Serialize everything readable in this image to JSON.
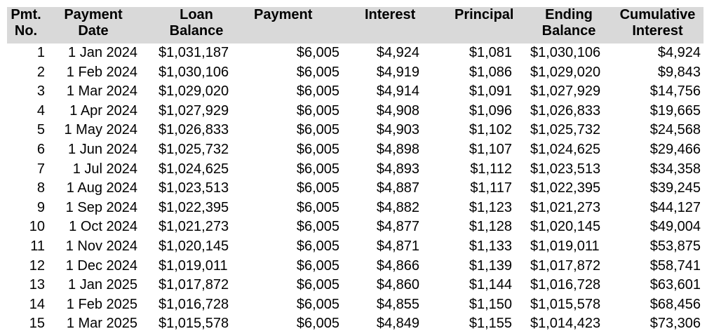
{
  "headers": {
    "pmt_no": [
      "Pmt.",
      "No."
    ],
    "payment_date": [
      "Payment",
      "Date"
    ],
    "loan_balance": [
      "Loan",
      "Balance"
    ],
    "payment": [
      "Payment"
    ],
    "interest": [
      "Interest"
    ],
    "principal": [
      "Principal"
    ],
    "ending_balance": [
      "Ending",
      "Balance"
    ],
    "cumulative_interest": [
      "Cumulative",
      "Interest"
    ]
  },
  "rows": [
    {
      "no": "1",
      "date": "1 Jan 2024",
      "balance": "$1,031,187",
      "payment": "$6,005",
      "interest": "$4,924",
      "principal": "$1,081",
      "ending": "$1,030,106",
      "cumulative": "$4,924"
    },
    {
      "no": "2",
      "date": "1 Feb 2024",
      "balance": "$1,030,106",
      "payment": "$6,005",
      "interest": "$4,919",
      "principal": "$1,086",
      "ending": "$1,029,020",
      "cumulative": "$9,843"
    },
    {
      "no": "3",
      "date": "1 Mar 2024",
      "balance": "$1,029,020",
      "payment": "$6,005",
      "interest": "$4,914",
      "principal": "$1,091",
      "ending": "$1,027,929",
      "cumulative": "$14,756"
    },
    {
      "no": "4",
      "date": "1 Apr 2024",
      "balance": "$1,027,929",
      "payment": "$6,005",
      "interest": "$4,908",
      "principal": "$1,096",
      "ending": "$1,026,833",
      "cumulative": "$19,665"
    },
    {
      "no": "5",
      "date": "1 May 2024",
      "balance": "$1,026,833",
      "payment": "$6,005",
      "interest": "$4,903",
      "principal": "$1,102",
      "ending": "$1,025,732",
      "cumulative": "$24,568"
    },
    {
      "no": "6",
      "date": "1 Jun 2024",
      "balance": "$1,025,732",
      "payment": "$6,005",
      "interest": "$4,898",
      "principal": "$1,107",
      "ending": "$1,024,625",
      "cumulative": "$29,466"
    },
    {
      "no": "7",
      "date": "1 Jul 2024",
      "balance": "$1,024,625",
      "payment": "$6,005",
      "interest": "$4,893",
      "principal": "$1,112",
      "ending": "$1,023,513",
      "cumulative": "$34,358"
    },
    {
      "no": "8",
      "date": "1 Aug 2024",
      "balance": "$1,023,513",
      "payment": "$6,005",
      "interest": "$4,887",
      "principal": "$1,117",
      "ending": "$1,022,395",
      "cumulative": "$39,245"
    },
    {
      "no": "9",
      "date": "1 Sep 2024",
      "balance": "$1,022,395",
      "payment": "$6,005",
      "interest": "$4,882",
      "principal": "$1,123",
      "ending": "$1,021,273",
      "cumulative": "$44,127"
    },
    {
      "no": "10",
      "date": "1 Oct 2024",
      "balance": "$1,021,273",
      "payment": "$6,005",
      "interest": "$4,877",
      "principal": "$1,128",
      "ending": "$1,020,145",
      "cumulative": "$49,004"
    },
    {
      "no": "11",
      "date": "1 Nov 2024",
      "balance": "$1,020,145",
      "payment": "$6,005",
      "interest": "$4,871",
      "principal": "$1,133",
      "ending": "$1,019,011",
      "cumulative": "$53,875"
    },
    {
      "no": "12",
      "date": "1 Dec 2024",
      "balance": "$1,019,011",
      "payment": "$6,005",
      "interest": "$4,866",
      "principal": "$1,139",
      "ending": "$1,017,872",
      "cumulative": "$58,741"
    },
    {
      "no": "13",
      "date": "1 Jan 2025",
      "balance": "$1,017,872",
      "payment": "$6,005",
      "interest": "$4,860",
      "principal": "$1,144",
      "ending": "$1,016,728",
      "cumulative": "$63,601"
    },
    {
      "no": "14",
      "date": "1 Feb 2025",
      "balance": "$1,016,728",
      "payment": "$6,005",
      "interest": "$4,855",
      "principal": "$1,150",
      "ending": "$1,015,578",
      "cumulative": "$68,456"
    },
    {
      "no": "15",
      "date": "1 Mar 2025",
      "balance": "$1,015,578",
      "payment": "$6,005",
      "interest": "$4,849",
      "principal": "$1,155",
      "ending": "$1,014,423",
      "cumulative": "$73,306"
    }
  ],
  "colors": {
    "header_background": "#d9d9d9",
    "text": "#000000",
    "background": "#ffffff"
  }
}
